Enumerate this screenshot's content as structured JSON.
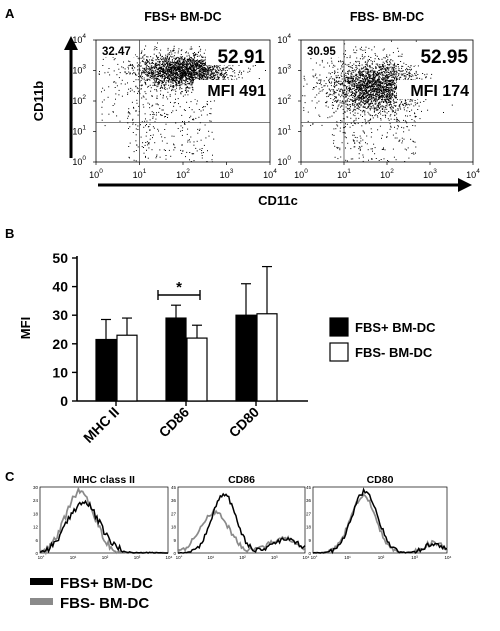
{
  "panels": {
    "a": {
      "label": "A"
    },
    "b": {
      "label": "B"
    },
    "c": {
      "label": "C"
    }
  },
  "chart_data": [
    {
      "type": "scatter",
      "panel": "A",
      "xscale": "log",
      "yscale": "log",
      "xlim": [
        1,
        10000
      ],
      "ylim": [
        1,
        10000
      ],
      "xlabel": "CD11c",
      "ylabel": "CD11b",
      "tick_values": [
        1,
        10,
        100,
        1000,
        10000
      ],
      "tick_bases": [
        "10",
        "10",
        "10",
        "10",
        "10"
      ],
      "tick_exps": [
        "0",
        "1",
        "2",
        "3",
        "4"
      ],
      "gate": {
        "x": 10,
        "y": 20
      },
      "plots": [
        {
          "title": "FBS+ BM-DC",
          "upper_left_pct": "32.47",
          "upper_right_pct": "52.91",
          "mfi": "MFI 491",
          "cluster": {
            "cx": 2.0,
            "cy": 3.0,
            "sx": 0.55,
            "sy": 0.28
          }
        },
        {
          "title": "FBS- BM-DC",
          "upper_left_pct": "30.95",
          "upper_right_pct": "52.95",
          "mfi": "MFI 174",
          "cluster": {
            "cx": 1.7,
            "cy": 2.5,
            "sx": 0.5,
            "sy": 0.45
          }
        }
      ]
    },
    {
      "type": "bar",
      "panel": "B",
      "categories": [
        "MHC II",
        "CD86",
        "CD80"
      ],
      "ylabel": "MFI",
      "ylim": [
        0,
        50
      ],
      "yticks": [
        "0",
        "10",
        "20",
        "30",
        "40",
        "50"
      ],
      "series": [
        {
          "name": "FBS+ BM-DC",
          "color": "#000000",
          "values": [
            21.5,
            29,
            30
          ],
          "errors": [
            7,
            4.5,
            11
          ]
        },
        {
          "name": "FBS- BM-DC",
          "color": "#ffffff",
          "values": [
            23,
            22,
            30.5
          ],
          "errors": [
            6,
            4.5,
            16.5
          ]
        }
      ],
      "significance": {
        "category": "CD86",
        "label": "*"
      },
      "legend": "right"
    },
    {
      "type": "line",
      "panel": "C",
      "xscale": "log",
      "series_names": [
        "FBS+ BM-DC",
        "FBS- BM-DC"
      ],
      "series_colors": [
        "#000000",
        "#8a8a8a"
      ],
      "histograms": [
        {
          "title": "MHC class II",
          "ymax": 30,
          "yticks": [
            "0",
            "6",
            "12",
            "18",
            "24",
            "30"
          ],
          "peaks": [
            [
              {
                "c": 1.35,
                "w": 0.5,
                "h": 23
              }
            ],
            [
              {
                "c": 1.25,
                "w": 0.45,
                "h": 28
              }
            ]
          ]
        },
        {
          "title": "CD86",
          "ymax": 45,
          "yticks": [
            "0",
            "9",
            "18",
            "27",
            "36",
            "45"
          ],
          "peaks": [
            [
              {
                "c": 1.45,
                "w": 0.38,
                "h": 40
              },
              {
                "c": 3.4,
                "w": 0.45,
                "h": 9
              }
            ],
            [
              {
                "c": 1.15,
                "w": 0.45,
                "h": 28
              },
              {
                "c": 3.3,
                "w": 0.45,
                "h": 10
              }
            ]
          ]
        },
        {
          "title": "CD80",
          "ymax": 45,
          "yticks": [
            "0",
            "9",
            "18",
            "27",
            "36",
            "45"
          ],
          "peaks": [
            [
              {
                "c": 1.55,
                "w": 0.38,
                "h": 42
              },
              {
                "c": 3.6,
                "w": 0.3,
                "h": 6
              }
            ],
            [
              {
                "c": 1.5,
                "w": 0.38,
                "h": 39
              },
              {
                "c": 3.6,
                "w": 0.3,
                "h": 7
              }
            ]
          ]
        }
      ],
      "xtick_labels": [
        "10°",
        "10¹",
        "10²",
        "10³",
        "10⁴"
      ]
    }
  ]
}
